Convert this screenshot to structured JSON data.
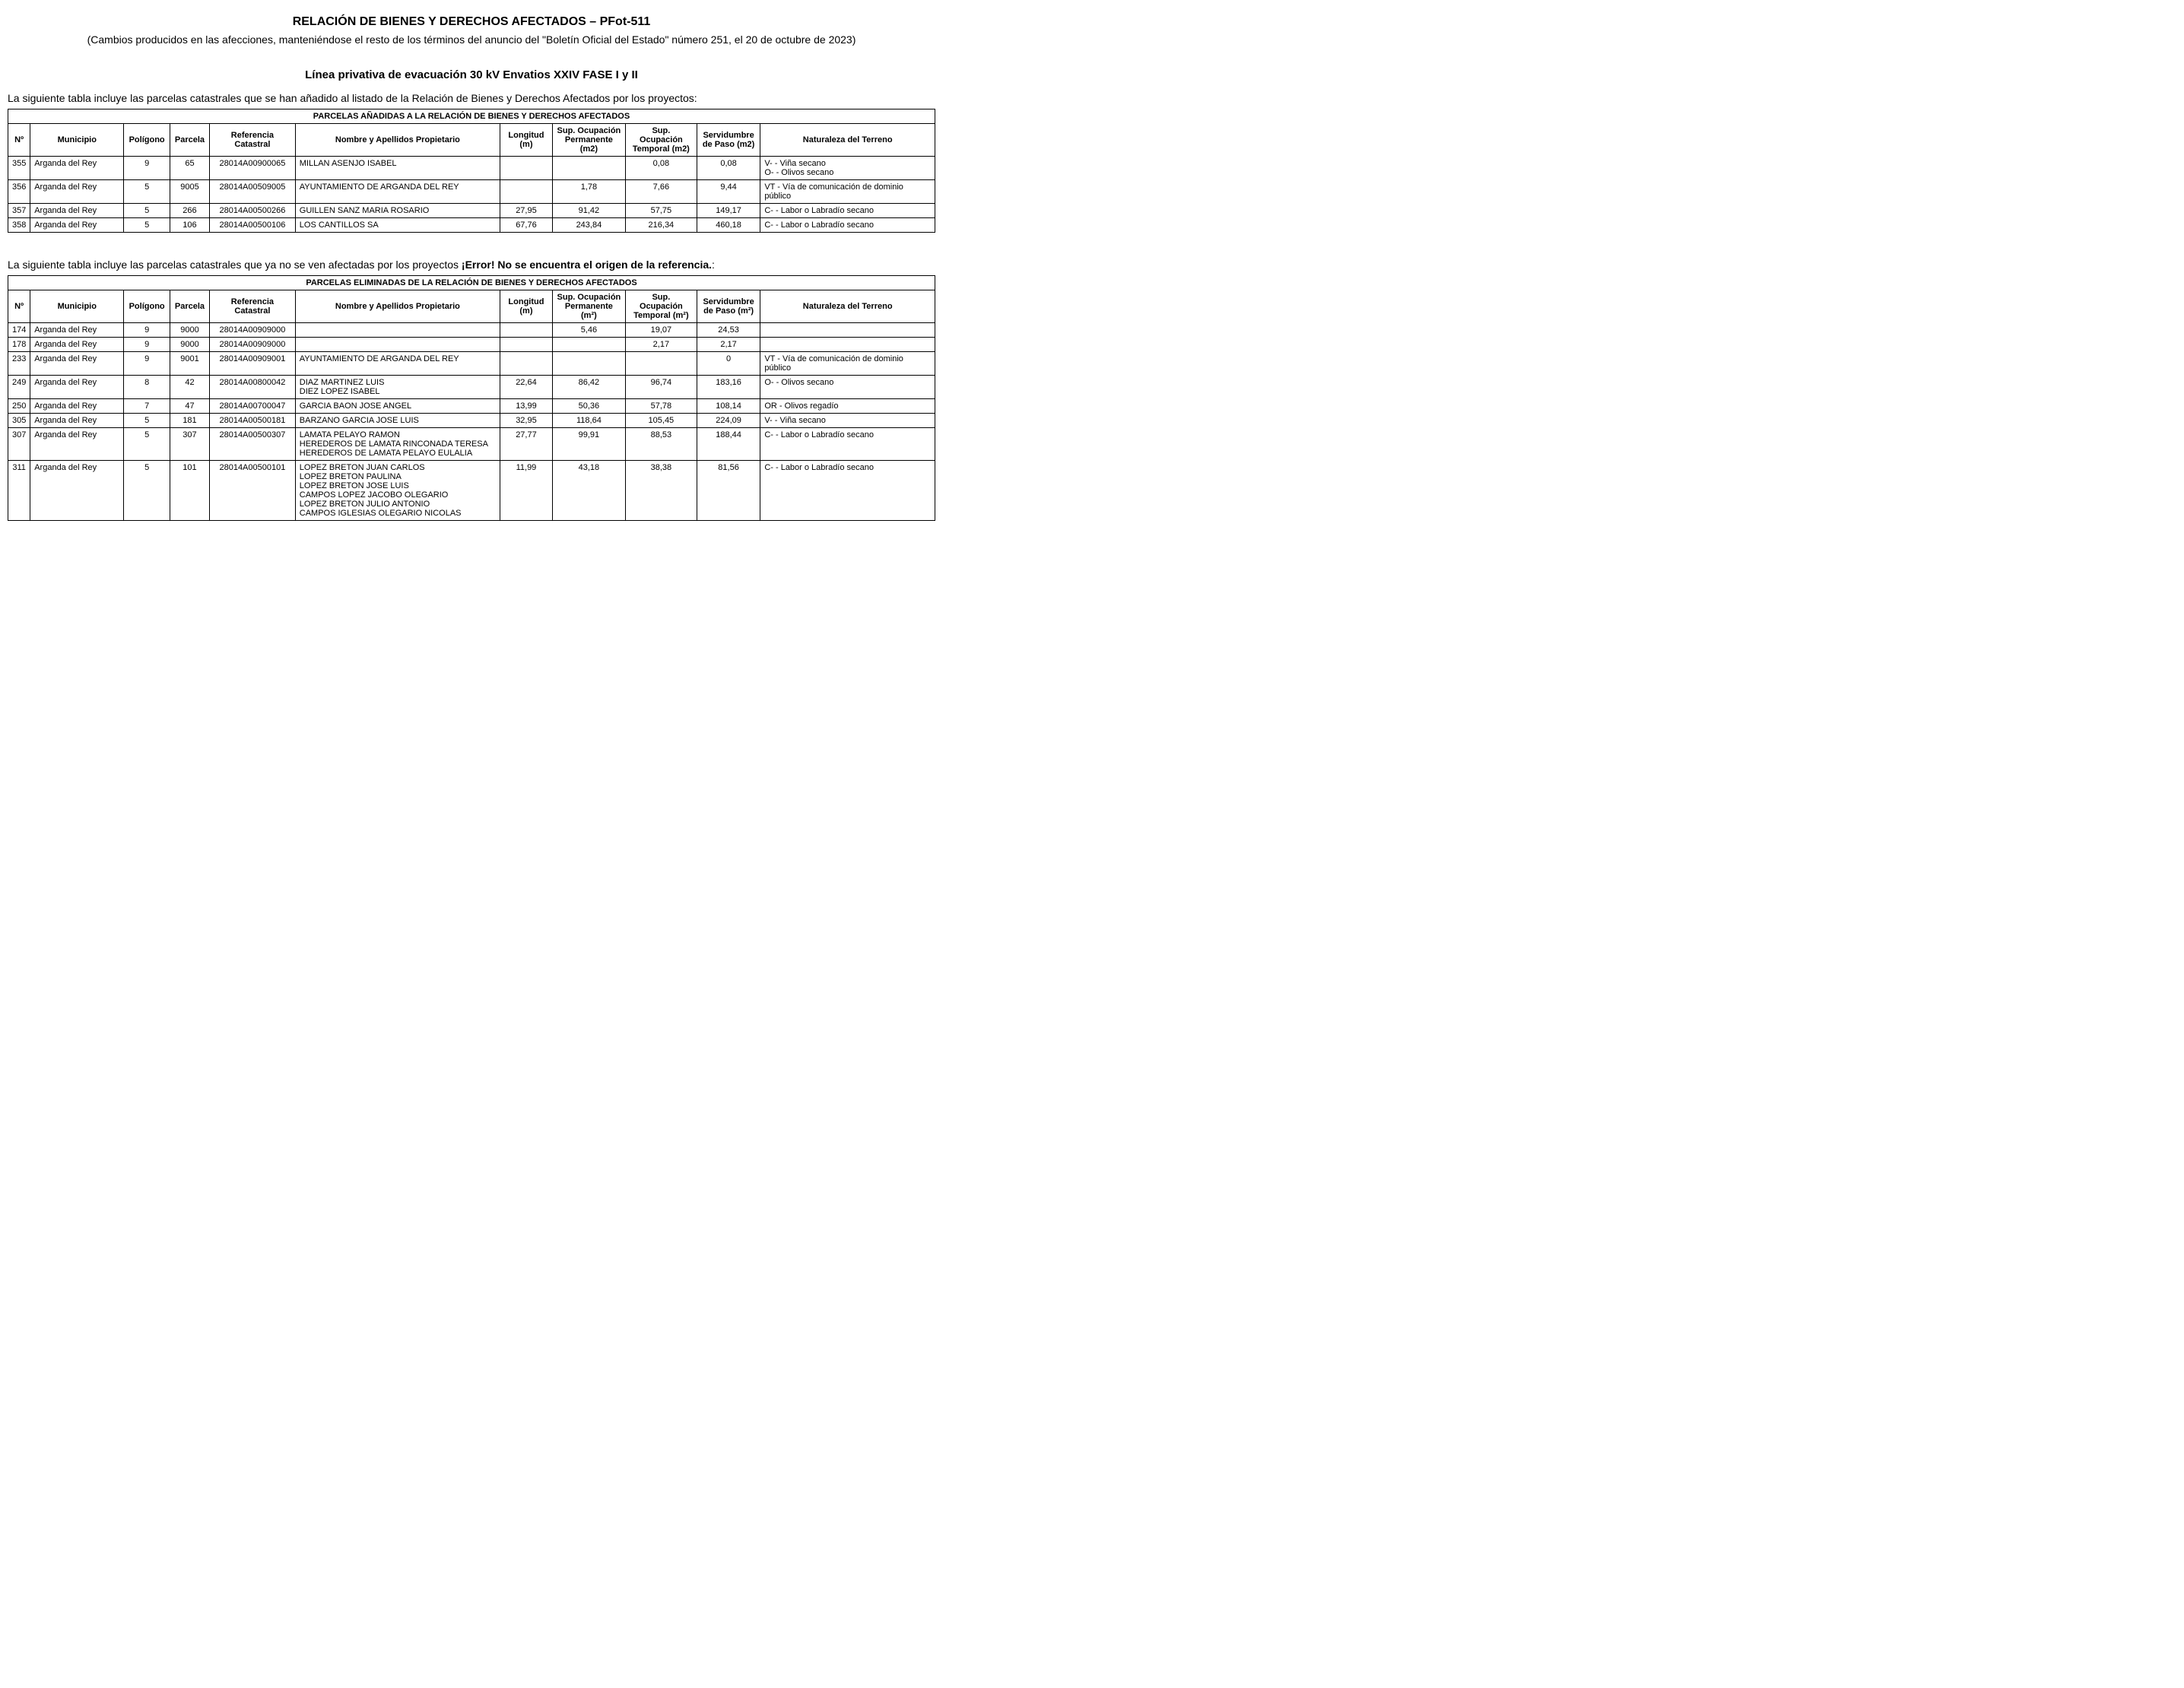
{
  "header": {
    "title": "RELACIÓN DE BIENES Y DERECHOS AFECTADOS – PFot-511",
    "subtitle": "(Cambios producidos en las afecciones, manteniéndose el resto de los términos del anuncio del \"Boletín Oficial del Estado\" número 251, el 20 de octubre de 2023)",
    "section_title": "Línea privativa de evacuación 30 kV Envatios XXIV FASE I y II",
    "intro_added": "La siguiente tabla incluye las parcelas catastrales que se han añadido al listado de la Relación de Bienes y Derechos Afectados por los proyectos:",
    "intro_removed_pre": "La siguiente tabla incluye las parcelas catastrales que ya no se ven afectadas por los proyectos ",
    "intro_removed_bold": "¡Error! No se encuentra el origen de la referencia.",
    "intro_removed_post": ":"
  },
  "columns_added": {
    "num": "Nº",
    "municipio": "Municipio",
    "poligono": "Polígono",
    "parcela": "Parcela",
    "referencia": "Referencia Catastral",
    "nombre": "Nombre y Apellidos Propietario",
    "longitud": "Longitud (m)",
    "sup_perm": "Sup. Ocupación Permanente (m2)",
    "sup_temp": "Sup. Ocupación Temporal (m2)",
    "servidumbre": "Servidumbre de Paso (m2)",
    "naturaleza": "Naturaleza del Terreno"
  },
  "columns_removed": {
    "num": "Nº",
    "municipio": "Municipio",
    "poligono": "Polígono",
    "parcela": "Parcela",
    "referencia": "Referencia Catastral",
    "nombre": "Nombre y Apellidos Propietario",
    "longitud": "Longitud (m)",
    "sup_perm": "Sup. Ocupación Permanente (m²)",
    "sup_temp": "Sup. Ocupación Temporal (m²)",
    "servidumbre": "Servidumbre de Paso (m²)",
    "naturaleza": "Naturaleza del Terreno"
  },
  "table_added": {
    "caption": "PARCELAS AÑADIDAS A LA RELACIÓN DE BIENES Y DERECHOS AFECTADOS",
    "rows": [
      {
        "num": "355",
        "municipio": "Arganda del Rey",
        "poligono": "9",
        "parcela": "65",
        "referencia": "28014A00900065",
        "nombre": "MILLAN ASENJO ISABEL",
        "longitud": "",
        "sup_perm": "",
        "sup_temp": "0,08",
        "servidumbre": "0,08",
        "naturaleza": "V- - Viña secano\nO- - Olivos secano"
      },
      {
        "num": "356",
        "municipio": "Arganda del Rey",
        "poligono": "5",
        "parcela": "9005",
        "referencia": "28014A00509005",
        "nombre": "AYUNTAMIENTO DE ARGANDA DEL REY",
        "longitud": "",
        "sup_perm": "1,78",
        "sup_temp": "7,66",
        "servidumbre": "9,44",
        "naturaleza": "VT - Vía de comunicación de dominio público"
      },
      {
        "num": "357",
        "municipio": "Arganda del Rey",
        "poligono": "5",
        "parcela": "266",
        "referencia": "28014A00500266",
        "nombre": "GUILLEN SANZ MARIA ROSARIO",
        "longitud": "27,95",
        "sup_perm": "91,42",
        "sup_temp": "57,75",
        "servidumbre": "149,17",
        "naturaleza": "C- - Labor o Labradío secano"
      },
      {
        "num": "358",
        "municipio": "Arganda del Rey",
        "poligono": "5",
        "parcela": "106",
        "referencia": "28014A00500106",
        "nombre": "LOS CANTILLOS SA",
        "longitud": "67,76",
        "sup_perm": "243,84",
        "sup_temp": "216,34",
        "servidumbre": "460,18",
        "naturaleza": "C- - Labor o Labradío secano"
      }
    ]
  },
  "table_removed": {
    "caption": "PARCELAS ELIMINADAS DE LA RELACIÓN DE BIENES Y DERECHOS AFECTADOS",
    "rows": [
      {
        "num": "174",
        "municipio": "Arganda del Rey",
        "poligono": "9",
        "parcela": "9000",
        "referencia": "28014A00909000",
        "nombre": "",
        "longitud": "",
        "sup_perm": "5,46",
        "sup_temp": "19,07",
        "servidumbre": "24,53",
        "naturaleza": ""
      },
      {
        "num": "178",
        "municipio": "Arganda del Rey",
        "poligono": "9",
        "parcela": "9000",
        "referencia": "28014A00909000",
        "nombre": "",
        "longitud": "",
        "sup_perm": "",
        "sup_temp": "2,17",
        "servidumbre": "2,17",
        "naturaleza": ""
      },
      {
        "num": "233",
        "municipio": "Arganda del Rey",
        "poligono": "9",
        "parcela": "9001",
        "referencia": "28014A00909001",
        "nombre": "AYUNTAMIENTO DE ARGANDA DEL REY",
        "longitud": "",
        "sup_perm": "",
        "sup_temp": "",
        "servidumbre": "0",
        "naturaleza": "VT - Vía de comunicación de dominio público"
      },
      {
        "num": "249",
        "municipio": "Arganda del Rey",
        "poligono": "8",
        "parcela": "42",
        "referencia": "28014A00800042",
        "nombre": "DIAZ MARTINEZ LUIS\nDIEZ LOPEZ ISABEL",
        "longitud": "22,64",
        "sup_perm": "86,42",
        "sup_temp": "96,74",
        "servidumbre": "183,16",
        "naturaleza": "O- - Olivos secano"
      },
      {
        "num": "250",
        "municipio": "Arganda del Rey",
        "poligono": "7",
        "parcela": "47",
        "referencia": "28014A00700047",
        "nombre": "GARCIA BAON JOSE ANGEL",
        "longitud": "13,99",
        "sup_perm": "50,36",
        "sup_temp": "57,78",
        "servidumbre": "108,14",
        "naturaleza": "OR - Olivos regadío"
      },
      {
        "num": "305",
        "municipio": "Arganda del Rey",
        "poligono": "5",
        "parcela": "181",
        "referencia": "28014A00500181",
        "nombre": "BARZANO GARCIA JOSE LUIS",
        "longitud": "32,95",
        "sup_perm": "118,64",
        "sup_temp": "105,45",
        "servidumbre": "224,09",
        "naturaleza": "V- - Viña secano"
      },
      {
        "num": "307",
        "municipio": "Arganda del Rey",
        "poligono": "5",
        "parcela": "307",
        "referencia": "28014A00500307",
        "nombre": "LAMATA PELAYO RAMON\nHEREDEROS DE LAMATA RINCONADA TERESA\nHEREDEROS DE LAMATA PELAYO EULALIA",
        "longitud": "27,77",
        "sup_perm": "99,91",
        "sup_temp": "88,53",
        "servidumbre": "188,44",
        "naturaleza": "C- - Labor o Labradío secano"
      },
      {
        "num": "311",
        "municipio": "Arganda del Rey",
        "poligono": "5",
        "parcela": "101",
        "referencia": "28014A00500101",
        "nombre": "LOPEZ BRETON JUAN CARLOS\nLOPEZ BRETON PAULINA\nLOPEZ BRETON JOSE LUIS\nCAMPOS LOPEZ JACOBO OLEGARIO\nLOPEZ BRETON JULIO ANTONIO\nCAMPOS IGLESIAS OLEGARIO NICOLAS",
        "longitud": "11,99",
        "sup_perm": "43,18",
        "sup_temp": "38,38",
        "servidumbre": "81,56",
        "naturaleza": "C- - Labor o Labradío secano"
      }
    ]
  }
}
